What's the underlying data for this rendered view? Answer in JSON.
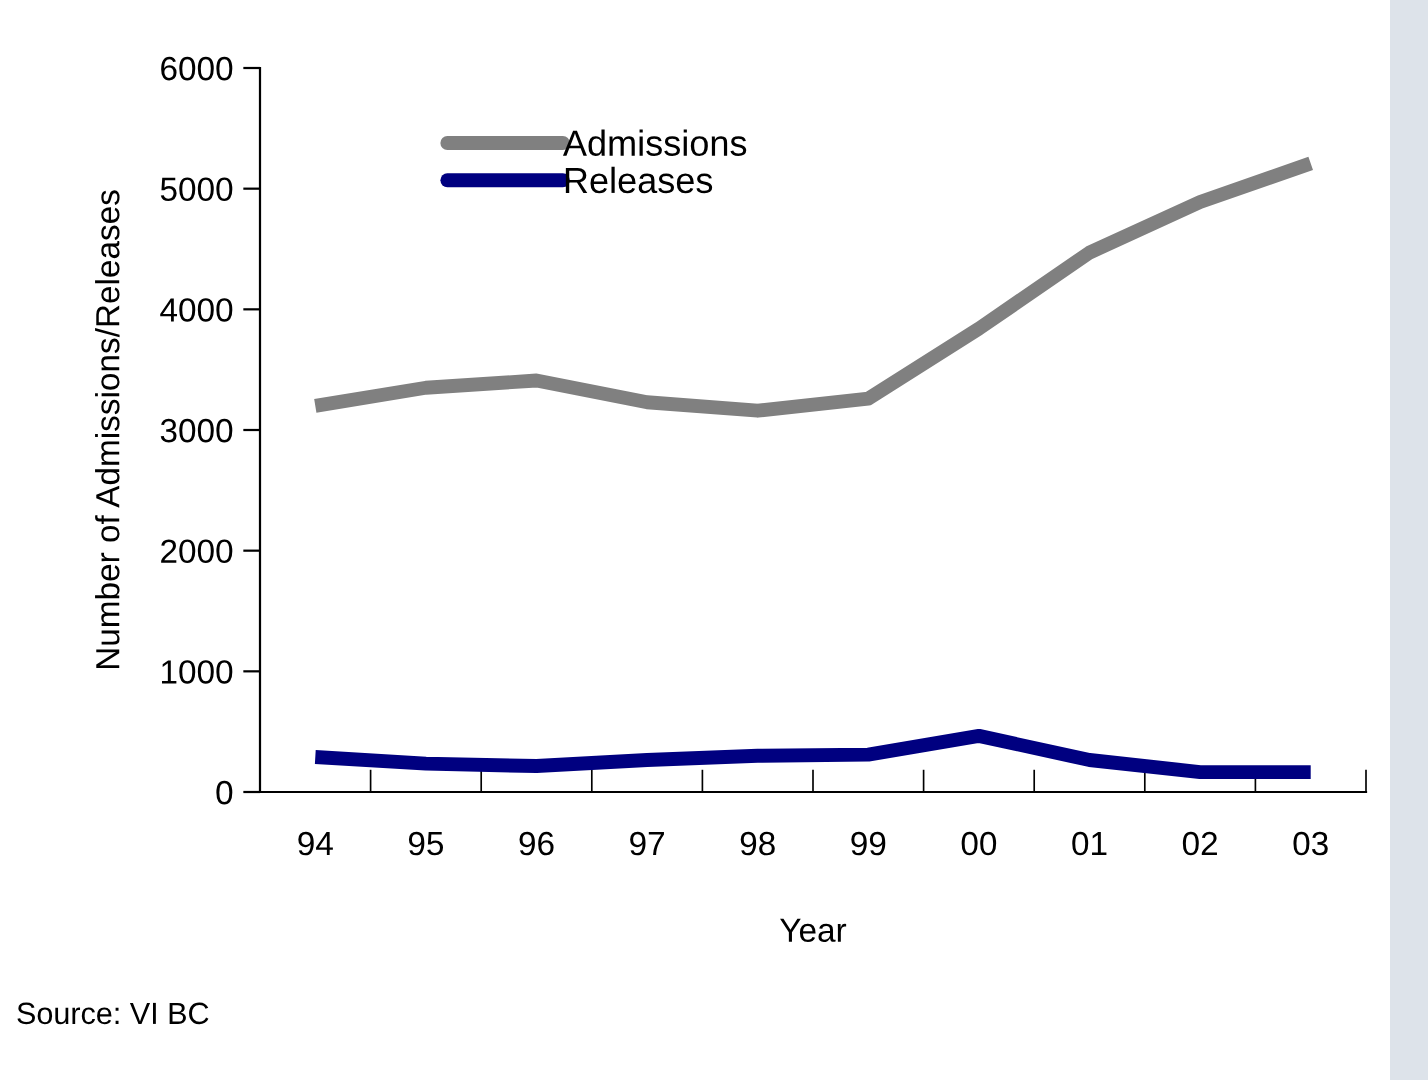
{
  "chart_data": {
    "type": "line",
    "xlabel": "Year",
    "ylabel": "Number of Admissions/Releases",
    "categories": [
      "94",
      "95",
      "96",
      "97",
      "98",
      "99",
      "00",
      "01",
      "02",
      "03"
    ],
    "series": [
      {
        "name": "Admissions",
        "color": "#808080",
        "values": [
          3200,
          3350,
          3410,
          3230,
          3160,
          3260,
          3840,
          4470,
          4890,
          5210
        ]
      },
      {
        "name": "Releases",
        "color": "#000080",
        "values": [
          290,
          235,
          215,
          265,
          300,
          310,
          465,
          265,
          165,
          165
        ]
      }
    ],
    "ylim": [
      0,
      6000
    ],
    "yticks": [
      0,
      1000,
      2000,
      3000,
      4000,
      5000,
      6000
    ],
    "grid": false,
    "legend": "top left",
    "marker": "none",
    "line_style": "solid",
    "annotations": [
      "Source: VI BC"
    ]
  }
}
